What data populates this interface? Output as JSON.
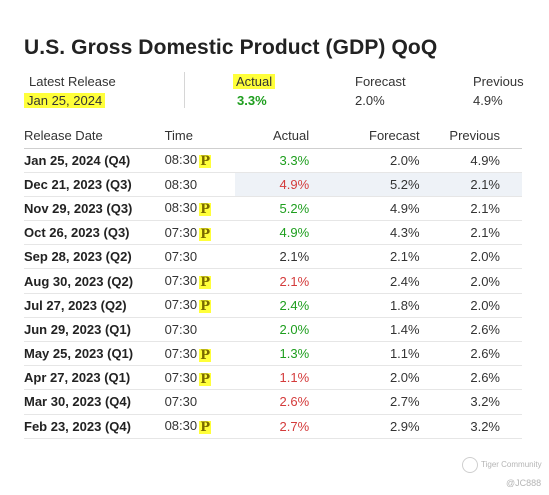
{
  "title": "U.S. Gross Domestic Product (GDP) QoQ",
  "summary": {
    "latest_label": "Latest Release",
    "latest_value": "Jan 25, 2024",
    "actual_label": "Actual",
    "actual_value": "3.3%",
    "forecast_label": "Forecast",
    "forecast_value": "2.0%",
    "previous_label": "Previous",
    "previous_value": "4.9%"
  },
  "table": {
    "headers": [
      "Release Date",
      "Time",
      "Actual",
      "Forecast",
      "Previous"
    ],
    "preliminary_glyph": "P",
    "rows": [
      {
        "date": "Jan 25, 2024 (Q4)",
        "time": "08:30",
        "prelim": true,
        "actual": "3.3%",
        "actual_color": "green",
        "forecast": "2.0%",
        "previous": "4.9%"
      },
      {
        "date": "Dec 21, 2023 (Q3)",
        "time": "08:30",
        "prelim": false,
        "actual": "4.9%",
        "actual_color": "red",
        "forecast": "5.2%",
        "previous": "2.1%"
      },
      {
        "date": "Nov 29, 2023 (Q3)",
        "time": "08:30",
        "prelim": true,
        "actual": "5.2%",
        "actual_color": "green",
        "forecast": "4.9%",
        "previous": "2.1%"
      },
      {
        "date": "Oct 26, 2023 (Q3)",
        "time": "07:30",
        "prelim": true,
        "actual": "4.9%",
        "actual_color": "green",
        "forecast": "4.3%",
        "previous": "2.1%"
      },
      {
        "date": "Sep 28, 2023 (Q2)",
        "time": "07:30",
        "prelim": false,
        "actual": "2.1%",
        "actual_color": "neutral",
        "forecast": "2.1%",
        "previous": "2.0%"
      },
      {
        "date": "Aug 30, 2023 (Q2)",
        "time": "07:30",
        "prelim": true,
        "actual": "2.1%",
        "actual_color": "red",
        "forecast": "2.4%",
        "previous": "2.0%"
      },
      {
        "date": "Jul 27, 2023 (Q2)",
        "time": "07:30",
        "prelim": true,
        "actual": "2.4%",
        "actual_color": "green",
        "forecast": "1.8%",
        "previous": "2.0%"
      },
      {
        "date": "Jun 29, 2023 (Q1)",
        "time": "07:30",
        "prelim": false,
        "actual": "2.0%",
        "actual_color": "green",
        "forecast": "1.4%",
        "previous": "2.6%"
      },
      {
        "date": "May 25, 2023 (Q1)",
        "time": "07:30",
        "prelim": true,
        "actual": "1.3%",
        "actual_color": "green",
        "forecast": "1.1%",
        "previous": "2.6%"
      },
      {
        "date": "Apr 27, 2023 (Q1)",
        "time": "07:30",
        "prelim": true,
        "actual": "1.1%",
        "actual_color": "red",
        "forecast": "2.0%",
        "previous": "2.6%"
      },
      {
        "date": "Mar 30, 2023 (Q4)",
        "time": "07:30",
        "prelim": false,
        "actual": "2.6%",
        "actual_color": "red",
        "forecast": "2.7%",
        "previous": "3.2%"
      },
      {
        "date": "Feb 23, 2023 (Q4)",
        "time": "08:30",
        "prelim": true,
        "actual": "2.7%",
        "actual_color": "red",
        "forecast": "2.9%",
        "previous": "3.2%"
      }
    ]
  },
  "colors": {
    "highlight": "#ffff3a",
    "positive": "#1e9e1e",
    "negative": "#d43b3b"
  },
  "watermark": {
    "brand": "Tiger Community",
    "handle": "@JC888"
  }
}
